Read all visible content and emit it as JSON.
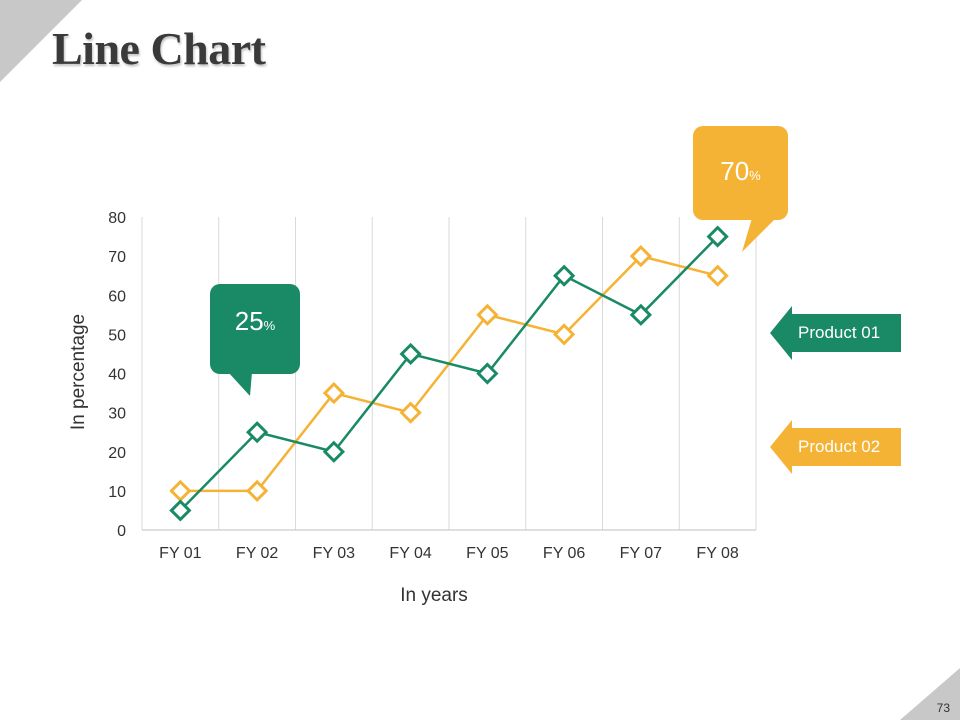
{
  "slide": {
    "title": "Line Chart",
    "page_number": "73"
  },
  "colors": {
    "green": "#1a8a66",
    "orange": "#f5b335",
    "grid": "#d9d9d9",
    "corner": "#c8c8c8"
  },
  "callouts": {
    "green": {
      "value": "25",
      "unit": "%"
    },
    "orange": {
      "value": "70",
      "unit": "%"
    }
  },
  "legend": {
    "product1": "Product 01",
    "product2": "Product 02"
  },
  "chart_data": {
    "type": "line",
    "categories": [
      "FY 01",
      "FY 02",
      "FY 03",
      "FY 04",
      "FY 05",
      "FY 06",
      "FY 07",
      "FY 08"
    ],
    "series": [
      {
        "name": "Product 01",
        "color": "#1a8a66",
        "values": [
          5,
          25,
          20,
          45,
          40,
          65,
          55,
          75
        ]
      },
      {
        "name": "Product 02",
        "color": "#f5b335",
        "values": [
          10,
          10,
          35,
          30,
          55,
          50,
          70,
          65
        ]
      }
    ],
    "xlabel": "In years",
    "ylabel": "In percentage",
    "ylim": [
      0,
      80
    ],
    "yticks": [
      0,
      10,
      20,
      30,
      40,
      50,
      60,
      70,
      80
    ],
    "ytick_labels": [
      "0",
      "10",
      "20",
      "30",
      "40",
      "50",
      "60",
      "70",
      "80"
    ],
    "grid": true
  }
}
